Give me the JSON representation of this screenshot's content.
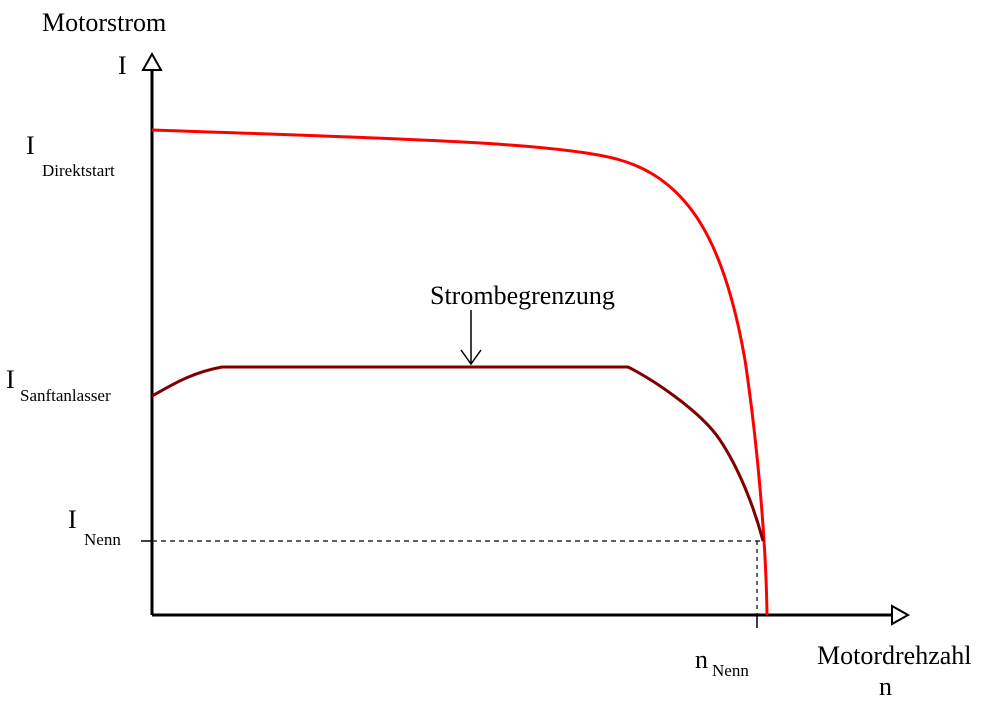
{
  "diagram": {
    "y_axis": {
      "title": "Motorstrom",
      "symbol": "I"
    },
    "x_axis": {
      "title": "Motordrehzahl",
      "symbol": "n"
    },
    "y_labels": {
      "direktstart": {
        "main": "I",
        "sub": "Direktstart"
      },
      "sanftanlasser": {
        "main": "I",
        "sub": "Sanftanlasser"
      },
      "nenn": {
        "main": "I",
        "sub": "Nenn"
      }
    },
    "x_labels": {
      "nenn": {
        "main": "n",
        "sub": "Nenn"
      }
    },
    "annotation": "Strombegrenzung",
    "colors": {
      "direct_start_curve": "#ff0000",
      "soft_starter_curve": "#800000",
      "axes": "#000000",
      "background": "#ffffff"
    }
  }
}
